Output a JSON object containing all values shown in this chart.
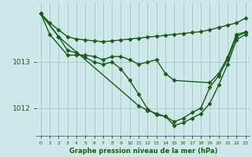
{
  "bg_color": "#cce8e8",
  "line_color": "#1a5c1a",
  "grid_color": "#aacccc",
  "xlabel": "Graphe pression niveau de la mer (hPa)",
  "ylabel_ticks": [
    1012,
    1013
  ],
  "xlim": [
    -0.5,
    23.5
  ],
  "ylim": [
    1011.4,
    1014.3
  ],
  "series": [
    {
      "x": [
        0,
        1,
        2,
        3,
        4,
        5,
        6,
        7,
        8,
        9,
        10,
        11,
        12,
        13,
        14,
        15,
        16,
        17,
        18,
        19,
        20,
        21,
        22,
        23
      ],
      "y": [
        1014.05,
        1013.85,
        1013.7,
        1013.55,
        1013.5,
        1013.48,
        1013.46,
        1013.44,
        1013.46,
        1013.48,
        1013.5,
        1013.52,
        1013.54,
        1013.56,
        1013.58,
        1013.6,
        1013.62,
        1013.64,
        1013.66,
        1013.7,
        1013.75,
        1013.8,
        1013.85,
        1013.95
      ],
      "marker": "D",
      "markersize": 2.5,
      "linewidth": 1.0
    },
    {
      "x": [
        0,
        1,
        3,
        4,
        5,
        6,
        7,
        8,
        9,
        10,
        11,
        12,
        13,
        14,
        15,
        19,
        20,
        21,
        22,
        23
      ],
      "y": [
        1014.05,
        1013.6,
        1013.15,
        1013.15,
        1013.15,
        1013.12,
        1013.05,
        1013.12,
        1013.12,
        1013.05,
        1012.95,
        1013.0,
        1013.05,
        1012.75,
        1012.6,
        1012.55,
        1012.75,
        1013.1,
        1013.6,
        1013.65
      ],
      "marker": "D",
      "markersize": 2.5,
      "linewidth": 1.0
    },
    {
      "x": [
        0,
        2,
        3,
        4,
        5,
        6,
        7,
        8,
        9,
        10,
        11,
        12,
        13,
        14,
        15,
        16,
        17,
        18,
        19,
        20,
        21,
        22,
        23
      ],
      "y": [
        1014.05,
        1013.55,
        1013.25,
        1013.2,
        1013.1,
        1013.0,
        1012.95,
        1013.0,
        1012.85,
        1012.6,
        1012.3,
        1011.98,
        1011.85,
        1011.82,
        1011.7,
        1011.78,
        1011.9,
        1012.0,
        1012.45,
        1012.7,
        1013.05,
        1013.55,
        1013.65
      ],
      "marker": "D",
      "markersize": 2.5,
      "linewidth": 1.0
    },
    {
      "x": [
        0,
        2,
        11,
        12,
        13,
        14,
        15,
        16,
        17,
        18,
        19,
        20,
        21,
        22,
        23
      ],
      "y": [
        1014.05,
        1013.55,
        1012.05,
        1011.95,
        1011.88,
        1011.82,
        1011.62,
        1011.68,
        1011.78,
        1011.88,
        1012.1,
        1012.5,
        1012.95,
        1013.48,
        1013.6
      ],
      "marker": "D",
      "markersize": 2.5,
      "linewidth": 1.0
    }
  ]
}
